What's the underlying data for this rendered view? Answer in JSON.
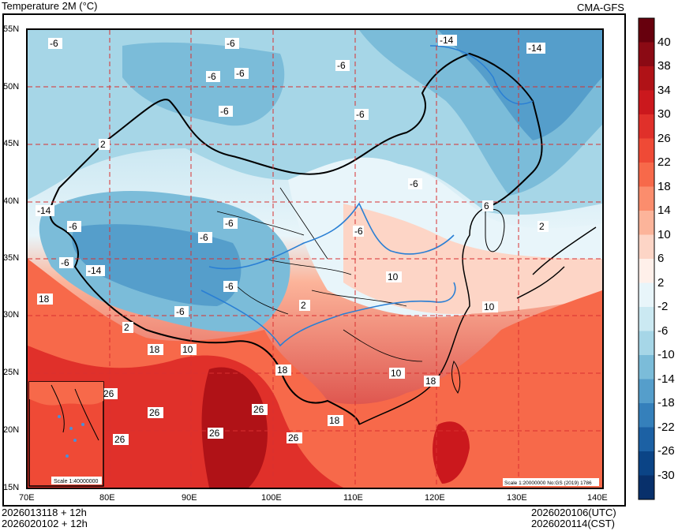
{
  "header": {
    "title": "Temperature  2M (°C)",
    "source": "CMA-GFS"
  },
  "footer": {
    "left_line1": "2026013118 + 12h",
    "left_line2": "2026020102 + 12h",
    "right_line1": "2026020106(UTC)",
    "right_line2": "2026020114(CST)"
  },
  "axes": {
    "lon_labels": [
      "70E",
      "80E",
      "90E",
      "100E",
      "110E",
      "120E",
      "130E",
      "140E"
    ],
    "lat_labels": [
      "55N",
      "50N",
      "45N",
      "40N",
      "35N",
      "30N",
      "25N",
      "20N",
      "15N"
    ]
  },
  "colorbar": {
    "labels": [
      "40",
      "38",
      "34",
      "30",
      "26",
      "22",
      "18",
      "14",
      "10",
      "6",
      "2",
      "-2",
      "-6",
      "-10",
      "-14",
      "-18",
      "-22",
      "-26",
      "-30"
    ],
    "colors": [
      "#67000d",
      "#8b0a14",
      "#b01217",
      "#cb181d",
      "#e0302a",
      "#ef4a36",
      "#f7694a",
      "#fb8d6d",
      "#fcb49a",
      "#fdd5c6",
      "#fff0ea",
      "#e8f5fa",
      "#cbe9f2",
      "#a6d6e7",
      "#7bbcd9",
      "#559ecb",
      "#3580bb",
      "#1c61a4",
      "#0b4486",
      "#08306b"
    ]
  },
  "contour_labels": [
    "-6",
    "-6",
    "-6",
    "-6",
    "-6",
    "-14",
    "-14",
    "-6",
    "-6",
    "2",
    "-6",
    "-14",
    "-6",
    "-6",
    "-6",
    "-6",
    "-14",
    "-6",
    "-6",
    "2",
    "6",
    "10",
    "2",
    "10",
    "18",
    "2",
    "-6",
    "18",
    "10",
    "18",
    "10",
    "18",
    "26",
    "26",
    "26",
    "26",
    "26",
    "26",
    "18",
    "-6",
    "2"
  ],
  "inset": {
    "scale_label": "Scale 1:40000000"
  },
  "map_scale_label": "Scale 1:20000000 No:GS (2019) 1786"
}
